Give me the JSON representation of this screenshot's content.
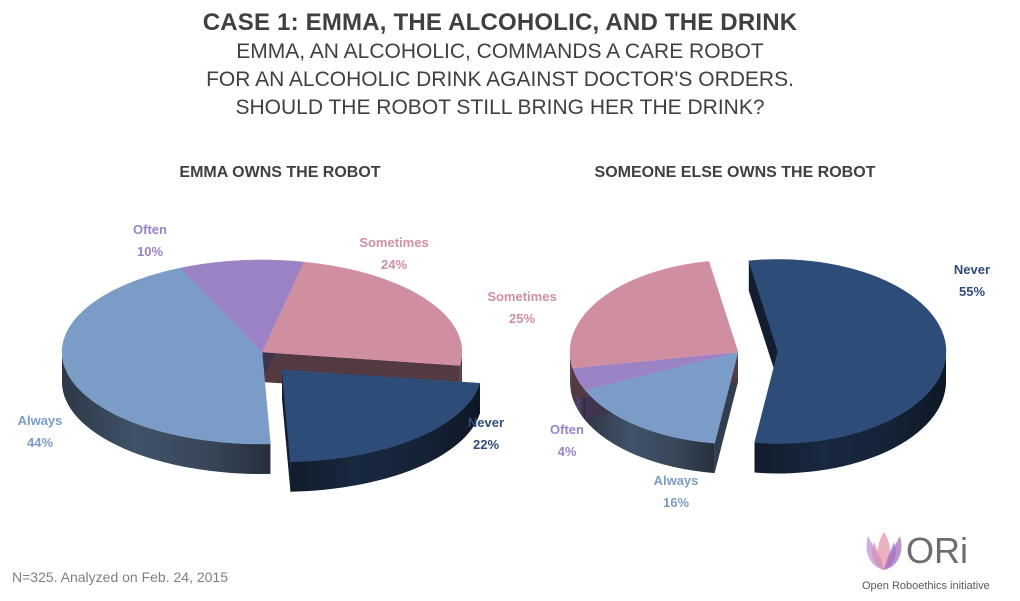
{
  "header": {
    "title": "CASE 1: EMMA, THE ALCOHOLIC, AND THE DRINK",
    "subtitle_lines": [
      "EMMA, AN ALCOHOLIC, COMMANDS A CARE ROBOT",
      "FOR AN ALCOHOLIC DRINK AGAINST DOCTOR'S ORDERS.",
      "SHOULD THE ROBOT STILL BRING HER THE DRINK?"
    ]
  },
  "chart_data": [
    {
      "type": "pie",
      "title": "EMMA OWNS THE ROBOT",
      "slices": [
        {
          "label": "Sometimes",
          "value": 24,
          "value_label": "24%",
          "color": "#d08fa0"
        },
        {
          "label": "Never",
          "value": 22,
          "value_label": "22%",
          "color": "#2e4c78",
          "exploded": true
        },
        {
          "label": "Always",
          "value": 44,
          "value_label": "44%",
          "color": "#7b9cc6"
        },
        {
          "label": "Often",
          "value": 10,
          "value_label": "10%",
          "color": "#9a82c4"
        }
      ]
    },
    {
      "type": "pie",
      "title": "SOMEONE ELSE OWNS THE ROBOT",
      "slices": [
        {
          "label": "Never",
          "value": 55,
          "value_label": "55%",
          "color": "#2e4c78",
          "exploded": true
        },
        {
          "label": "Always",
          "value": 16,
          "value_label": "16%",
          "color": "#7b9cc6"
        },
        {
          "label": "Often",
          "value": 4,
          "value_label": "4%",
          "color": "#9a82c4"
        },
        {
          "label": "Sometimes",
          "value": 25,
          "value_label": "25%",
          "color": "#d08fa0"
        }
      ]
    }
  ],
  "footnote": "N=325. Analyzed on Feb. 24, 2015",
  "logo": {
    "name": "ORi",
    "tagline": "Open Roboethics initiative",
    "icon": "lotus-icon"
  }
}
